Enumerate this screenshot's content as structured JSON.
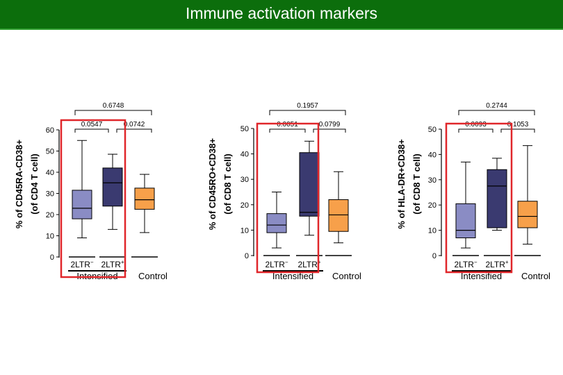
{
  "header": {
    "title": "Immune activation markers"
  },
  "colors": {
    "title_bg": "#0c6e0c",
    "highlight": "#e0262a",
    "low": "#8a8cc4",
    "high": "#3a3a70",
    "control": "#f7a04a"
  },
  "chart_data": [
    {
      "type": "box",
      "ylabel": "% of CD45RA-CD38+ (of CD4 T cell)",
      "yticks": [
        0,
        10,
        20,
        30,
        40,
        50,
        60
      ],
      "ylim": [
        0,
        60
      ],
      "categories": [
        "2LTR−",
        "2LTR+",
        ""
      ],
      "group_labels": [
        "Intensified",
        "Control"
      ],
      "boxes": [
        {
          "name": "2LTR−",
          "min": 9,
          "q1": 18,
          "median": 23,
          "q3": 31.5,
          "max": 55,
          "color": "#8a8cc4"
        },
        {
          "name": "2LTR+",
          "min": 13,
          "q1": 24,
          "median": 35,
          "q3": 42,
          "max": 48.5,
          "color": "#3a3a70"
        },
        {
          "name": "Control",
          "min": 11.5,
          "q1": 22.5,
          "median": 27,
          "q3": 32.5,
          "max": 39,
          "color": "#f7a04a"
        }
      ],
      "comparisons": [
        {
          "pair": [
            0,
            1
          ],
          "p": "0.0547"
        },
        {
          "pair": [
            1,
            2
          ],
          "p": "0.0742"
        },
        {
          "pair": [
            0,
            2
          ],
          "p": "0.6748"
        }
      ]
    },
    {
      "type": "box",
      "ylabel": "% of CD45RO+CD38+ (of CD8 T cell)",
      "yticks": [
        0,
        10,
        20,
        30,
        40,
        50
      ],
      "ylim": [
        0,
        50
      ],
      "categories": [
        "2LTR−",
        "2LTR+",
        ""
      ],
      "group_labels": [
        "Intensified",
        "Control"
      ],
      "boxes": [
        {
          "name": "2LTR−",
          "min": 3,
          "q1": 9,
          "median": 12,
          "q3": 16.5,
          "max": 25,
          "color": "#8a8cc4"
        },
        {
          "name": "2LTR+",
          "min": 8,
          "q1": 15.5,
          "median": 17,
          "q3": 40.5,
          "max": 45,
          "color": "#3a3a70"
        },
        {
          "name": "Control",
          "min": 5,
          "q1": 9.5,
          "median": 16,
          "q3": 22,
          "max": 33,
          "color": "#f7a04a"
        }
      ],
      "comparisons": [
        {
          "pair": [
            0,
            1
          ],
          "p": "0.0051"
        },
        {
          "pair": [
            1,
            2
          ],
          "p": "0.0799"
        },
        {
          "pair": [
            0,
            2
          ],
          "p": "0.1957"
        }
      ]
    },
    {
      "type": "box",
      "ylabel": "% of HLA-DR+CD38+ (of CD8 T cell)",
      "yticks": [
        0,
        10,
        20,
        30,
        40,
        50
      ],
      "ylim": [
        0,
        50
      ],
      "categories": [
        "2LTR−",
        "2LTR+",
        ""
      ],
      "group_labels": [
        "Intensified",
        "Control"
      ],
      "boxes": [
        {
          "name": "2LTR−",
          "min": 3,
          "q1": 7,
          "median": 10,
          "q3": 20.5,
          "max": 37,
          "color": "#8a8cc4"
        },
        {
          "name": "2LTR+",
          "min": 10,
          "q1": 11,
          "median": 27.5,
          "q3": 34,
          "max": 38.5,
          "color": "#3a3a70"
        },
        {
          "name": "Control",
          "min": 4.5,
          "q1": 11,
          "median": 15.5,
          "q3": 21.5,
          "max": 43.5,
          "color": "#f7a04a"
        }
      ],
      "comparisons": [
        {
          "pair": [
            0,
            1
          ],
          "p": "0.0093"
        },
        {
          "pair": [
            1,
            2
          ],
          "p": "0.1053"
        },
        {
          "pair": [
            0,
            2
          ],
          "p": "0.2744"
        }
      ]
    }
  ]
}
